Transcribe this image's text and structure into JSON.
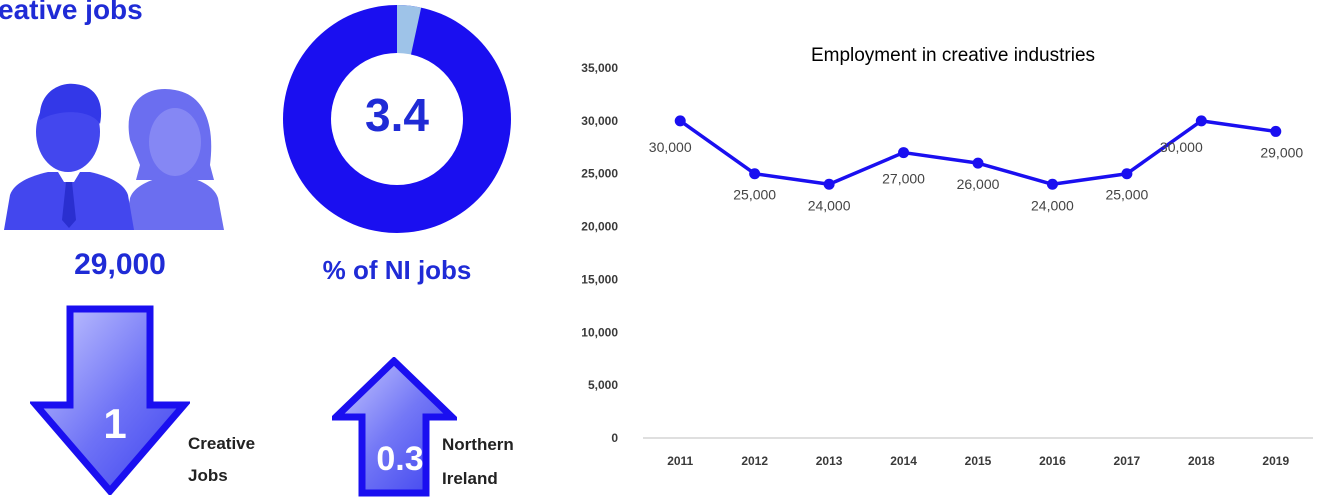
{
  "heading": "eative jobs",
  "infographic": {
    "jobs_count": "29,000",
    "donut": {
      "value_label": "3.4",
      "caption": "% of NI jobs",
      "share_percent": 3.4,
      "main_color": "#1a0ff0",
      "share_color": "#9ec3e8"
    },
    "down_arrow": {
      "value": "1",
      "caption_line1": "Creative",
      "caption_line2": "Jobs"
    },
    "up_arrow": {
      "value": "0.3",
      "caption_line1": "Northern",
      "caption_line2": "Ireland"
    },
    "people_icon": "people-icon"
  },
  "chart_data": {
    "type": "line",
    "title": "Employment in creative industries",
    "xlabel": "",
    "ylabel": "",
    "categories": [
      "2011",
      "2012",
      "2013",
      "2014",
      "2015",
      "2016",
      "2017",
      "2018",
      "2019"
    ],
    "series": [
      {
        "values": [
          30000,
          25000,
          24000,
          27000,
          26000,
          24000,
          25000,
          30000,
          29000
        ],
        "labels": [
          "30,000",
          "25,000",
          "24,000",
          "27,000",
          "26,000",
          "24,000",
          "25,000",
          "30,000",
          "29,000"
        ],
        "color": "#1a0ff0"
      }
    ],
    "ylim": [
      0,
      35000
    ],
    "yticks": [
      0,
      5000,
      10000,
      15000,
      20000,
      25000,
      30000,
      35000
    ],
    "ytick_labels": [
      "0",
      "5,000",
      "10,000",
      "15,000",
      "20,000",
      "25,000",
      "30,000",
      "35,000"
    ],
    "grid": false,
    "legend": "none"
  }
}
